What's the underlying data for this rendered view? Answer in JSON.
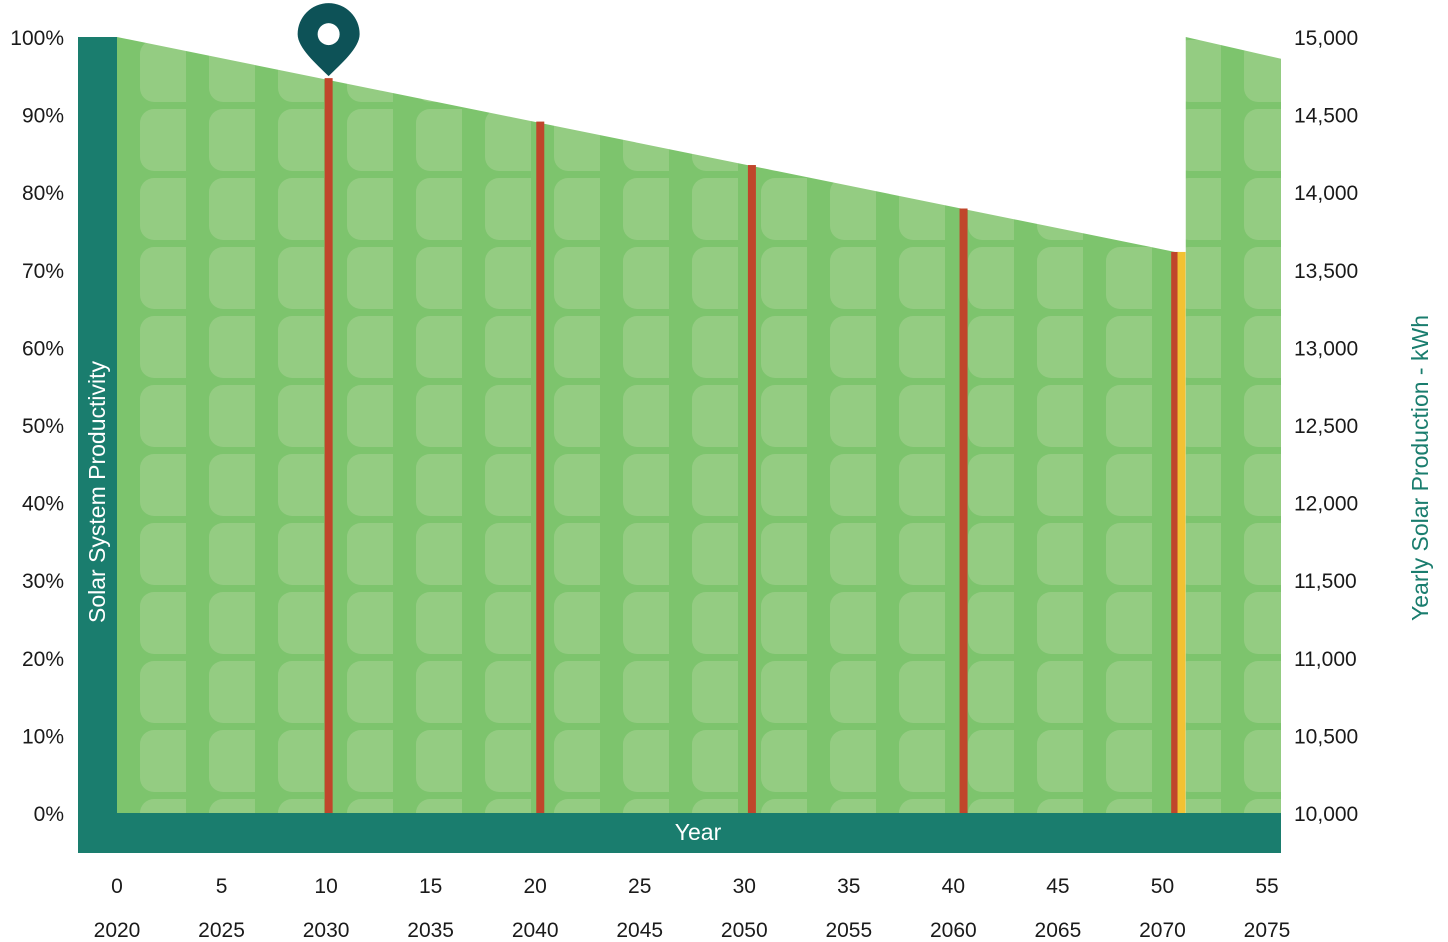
{
  "chart_data": {
    "type": "area",
    "xlabel": "Year",
    "ylabel_left": "Solar System Productivity",
    "ylabel_right": "Yearly Solar Production - kWh",
    "x_ticks": [
      "0",
      "5",
      "10",
      "15",
      "20",
      "25",
      "30",
      "35",
      "40",
      "45",
      "50",
      "55"
    ],
    "x_year_ticks": [
      "2020",
      "2025",
      "2030",
      "2035",
      "2040",
      "2045",
      "2050",
      "2055",
      "2060",
      "2065",
      "2070",
      "2075"
    ],
    "y_left_ticks": [
      "0%",
      "10%",
      "20%",
      "30%",
      "40%",
      "50%",
      "60%",
      "70%",
      "80%",
      "90%",
      "100%"
    ],
    "y_right_ticks": [
      "10,000",
      "10,500",
      "11,000",
      "11,500",
      "12,000",
      "12,500",
      "13,000",
      "13,500",
      "14,000",
      "14,500",
      "15,000"
    ],
    "xlim": [
      0,
      55
    ],
    "ylim_left": [
      0,
      100
    ],
    "ylim_right": [
      10000,
      15000
    ],
    "productivity_segments": [
      {
        "x": [
          0,
          50
        ],
        "y": [
          100,
          72.3
        ]
      },
      {
        "x": [
          50.5,
          55
        ],
        "y": [
          100,
          97.2
        ]
      }
    ],
    "markers": [
      {
        "x": 10,
        "y": 94.7,
        "color": "#c0462b"
      },
      {
        "x": 20,
        "y": 89.1,
        "color": "#c0462b"
      },
      {
        "x": 30,
        "y": 83.5,
        "color": "#c0462b"
      },
      {
        "x": 40,
        "y": 77.9,
        "color": "#c0462b"
      },
      {
        "x": 50,
        "y": 72.3,
        "color": "#c0462b"
      },
      {
        "x": 50.3,
        "y": 72.3,
        "color": "#f2c233"
      }
    ],
    "pin": {
      "x": 10,
      "color": "#0d5257"
    },
    "colors": {
      "area": "#7dc46d",
      "panel_cell": "#94cc82",
      "axis_band": "#1a7d6e",
      "right_label": "#1a7d6e",
      "tick_text": "#1a1a1a"
    }
  }
}
